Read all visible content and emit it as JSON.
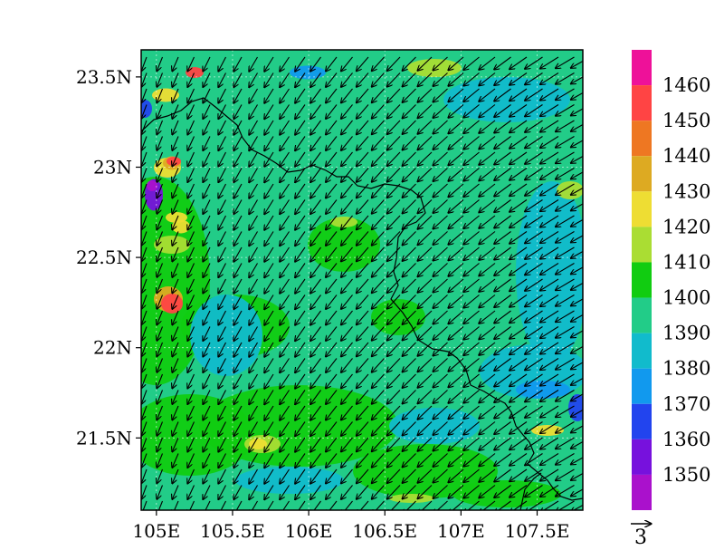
{
  "map": {
    "lat_ticks": [
      {
        "value": 23.5,
        "label": "23.5N"
      },
      {
        "value": 23.0,
        "label": "23N"
      },
      {
        "value": 22.5,
        "label": "22.5N"
      },
      {
        "value": 22.0,
        "label": "22N"
      },
      {
        "value": 21.5,
        "label": "21.5N"
      }
    ],
    "lon_ticks": [
      {
        "value": 105.0,
        "label": "105E"
      },
      {
        "value": 105.5,
        "label": "105.5E"
      },
      {
        "value": 106.0,
        "label": "106E"
      },
      {
        "value": 106.5,
        "label": "106.5E"
      },
      {
        "value": 107.0,
        "label": "107E"
      },
      {
        "value": 107.5,
        "label": "107.5E"
      }
    ],
    "lon_range": [
      104.9,
      107.8
    ],
    "lat_range": [
      21.1,
      23.65
    ],
    "base_fill_color": "#22cc88",
    "wind_direction": "from north-east (arrows point south-west)",
    "border_color": "#000000"
  },
  "colorbar": {
    "labels": [
      "1460",
      "1450",
      "1440",
      "1430",
      "1420",
      "1410",
      "1400",
      "1390",
      "1380",
      "1370",
      "1360",
      "1350"
    ],
    "colors": [
      "#ee1199",
      "#ff4444",
      "#ee7722",
      "#ddaa22",
      "#eedd33",
      "#aadd33",
      "#11cc11",
      "#22cc88",
      "#11bbcc",
      "#1199ee",
      "#2244ee",
      "#7711dd",
      "#aa11cc"
    ]
  },
  "vector_reference": {
    "label": "3"
  }
}
